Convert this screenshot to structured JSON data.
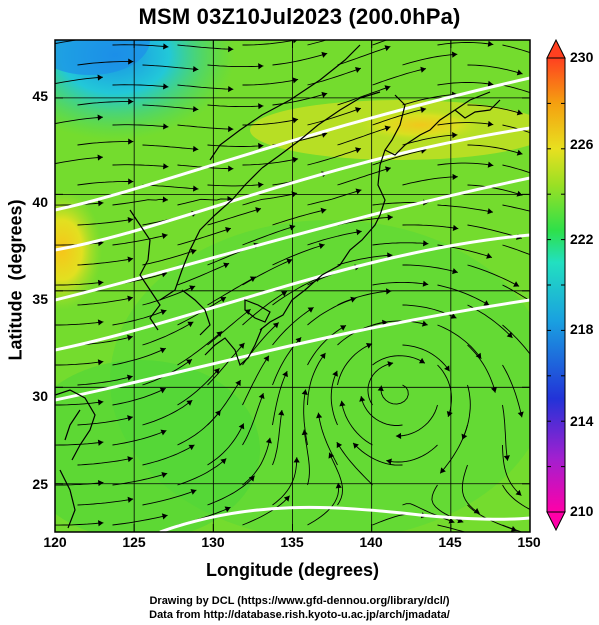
{
  "title": "MSM 03Z10Jul2023 (200.0hPa)",
  "xaxis": {
    "label": "Longitude (degrees)",
    "ticks": [
      "120",
      "125",
      "130",
      "135",
      "140",
      "145",
      "150"
    ],
    "range": [
      120,
      150
    ]
  },
  "yaxis": {
    "label": "Latitude  (degrees)",
    "ticks": [
      "25",
      "30",
      "35",
      "40",
      "45"
    ],
    "range": [
      22.5,
      48
    ]
  },
  "colorbar": {
    "ticks": [
      "230",
      "226",
      "222",
      "218",
      "214",
      "210"
    ],
    "range": [
      210,
      230
    ],
    "colors": [
      "#ff00a8",
      "#a020d0",
      "#2233d8",
      "#1aa0e0",
      "#22e0c0",
      "#2ee04a",
      "#9ae024",
      "#e8e020",
      "#f5a010",
      "#ff4020"
    ]
  },
  "credits": [
    "Drawing by DCL (https://www.gfd-dennou.org/library/dcl/)",
    "Data from http://database.rish.kyoto-u.ac.jp/arch/jmadata/"
  ],
  "field": {
    "variable": "temperature-like shaded field with wind streamlines",
    "anticyclone_center": {
      "lon": 141.5,
      "lat": 31
    }
  }
}
